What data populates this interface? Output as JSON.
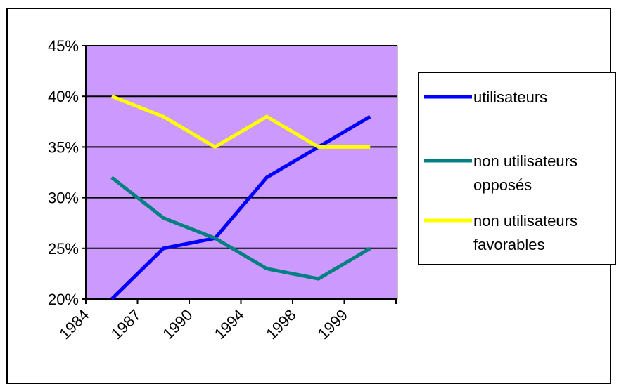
{
  "chart_data": {
    "type": "line",
    "categories": [
      "1984",
      "1987",
      "1990",
      "1994",
      "1998",
      "1999"
    ],
    "ylim": [
      0.2,
      0.45
    ],
    "y_ticks": [
      0.45,
      0.4,
      0.35,
      0.3,
      0.25,
      0.2
    ],
    "y_tick_labels": [
      "45%",
      "40%",
      "35%",
      "30%",
      "25%",
      "20%"
    ],
    "x_tick_labels": [
      "1984",
      "1987",
      "1990",
      "1994",
      "1998",
      "1999"
    ],
    "plot_background": "#cc99ff",
    "grid": true,
    "legend_position": "right",
    "series": [
      {
        "name": "utilisateurs",
        "color": "#0000ff",
        "legend_lines": [
          "utilisateurs"
        ],
        "values": [
          0.2,
          0.25,
          0.26,
          0.32,
          0.35,
          0.38
        ]
      },
      {
        "name": "non utilisateurs opposés",
        "color": "#008080",
        "legend_lines": [
          "non utilisateurs",
          "opposés"
        ],
        "values": [
          0.32,
          0.28,
          0.26,
          0.23,
          0.22,
          0.25
        ]
      },
      {
        "name": "non utilisateurs favorables",
        "color": "#ffff00",
        "legend_lines": [
          "non utilisateurs",
          "favorables"
        ],
        "values": [
          0.4,
          0.38,
          0.35,
          0.38,
          0.35,
          0.35
        ]
      }
    ]
  }
}
